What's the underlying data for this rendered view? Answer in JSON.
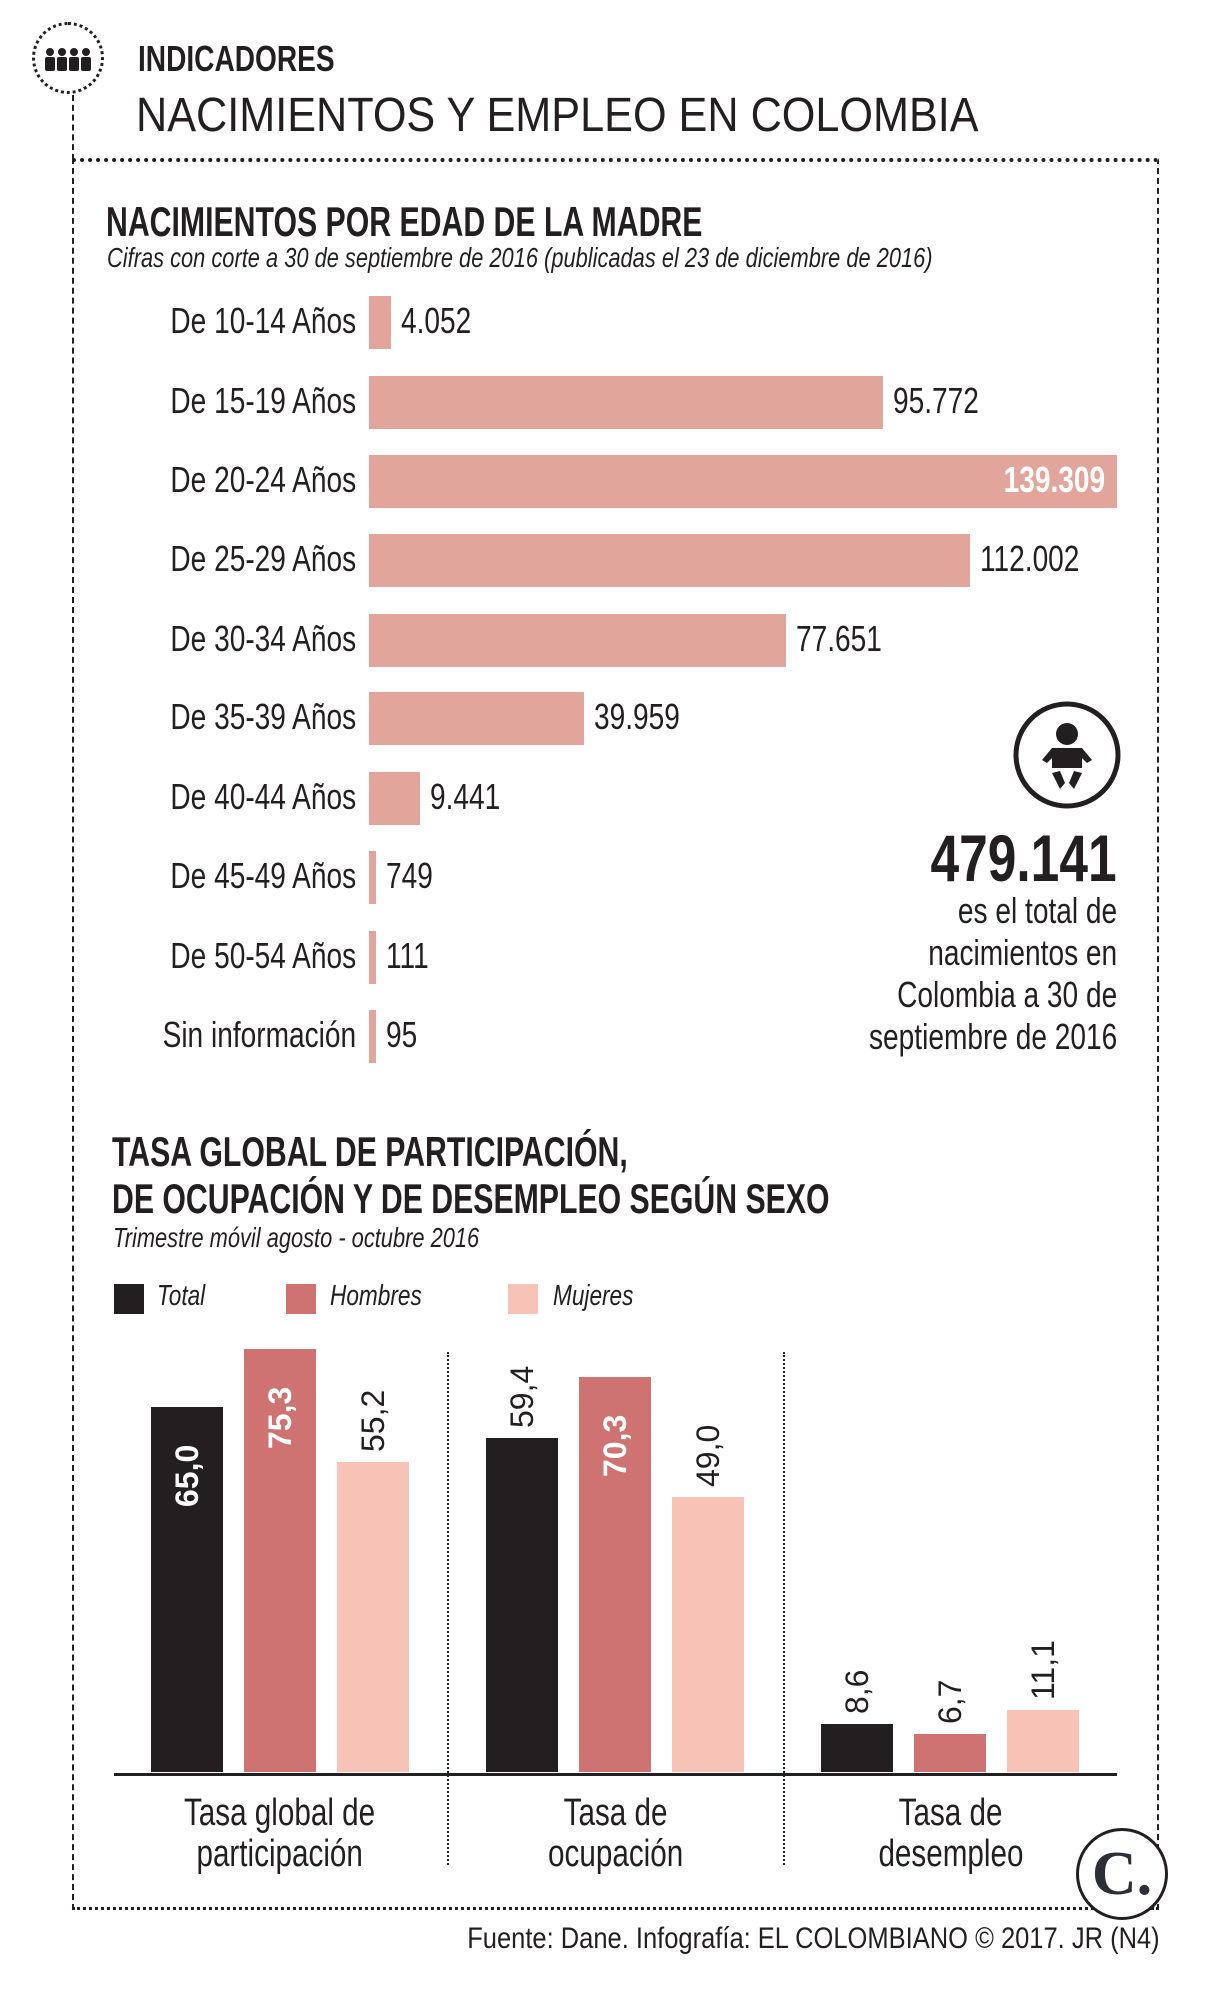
{
  "header": {
    "kicker": "INDICADORES",
    "title": "NACIMIENTOS Y EMPLEO EN COLOMBIA",
    "icon": "people-group-icon"
  },
  "colors": {
    "births_bar": "#e1a59b",
    "total": "#231f20",
    "hombres": "#cf7272",
    "mujeres": "#f8c3b7"
  },
  "chart_data": [
    {
      "type": "bar",
      "orientation": "horizontal",
      "title": "NACIMIENTOS POR EDAD DE LA MADRE",
      "subtitle": "Cifras con corte a 30 de septiembre de 2016 (publicadas el 23 de diciembre de 2016)",
      "categories": [
        "De 10-14 Años",
        "De 15-19 Años",
        "De 20-24 Años",
        "De 25-29 Años",
        "De 30-34 Años",
        "De 35-39 Años",
        "De 40-44 Años",
        "De 45-49 Años",
        "De 50-54 Años",
        "Sin información"
      ],
      "values": [
        4052,
        95772,
        139309,
        112002,
        77651,
        39959,
        9441,
        749,
        111,
        95
      ],
      "value_labels": [
        "4.052",
        "95.772",
        "139.309",
        "112.002",
        "77.651",
        "39.959",
        "9.441",
        "749",
        "111",
        "95"
      ],
      "grid": false,
      "annotation": {
        "icon": "baby-icon",
        "total": "479.141",
        "lines": [
          "es el total de",
          "nacimientos en",
          "Colombia a 30 de",
          "septiembre de 2016"
        ]
      }
    },
    {
      "type": "bar",
      "orientation": "vertical",
      "title_lines": [
        "TASA GLOBAL DE PARTICIPACIÓN,",
        "DE OCUPACIÓN Y DE DESEMPLEO SEGÚN SEXO"
      ],
      "subtitle": "Trimestre móvil agosto - octubre 2016",
      "categories": [
        [
          "Tasa global de",
          "participación"
        ],
        [
          "Tasa de",
          "ocupación"
        ],
        [
          "Tasa de",
          "desempleo"
        ]
      ],
      "series": [
        {
          "name": "Total",
          "values": [
            65.0,
            59.4,
            8.6
          ],
          "labels": [
            "65,0",
            "59,4",
            "8,6"
          ]
        },
        {
          "name": "Hombres",
          "values": [
            75.3,
            70.3,
            6.7
          ],
          "labels": [
            "75,3",
            "70,3",
            "6,7"
          ]
        },
        {
          "name": "Mujeres",
          "values": [
            55.2,
            49.0,
            11.1
          ],
          "labels": [
            "55,2",
            "49,0",
            "11,1"
          ]
        }
      ],
      "legend": "top-left",
      "grid": false
    }
  ],
  "footer": {
    "source": "Fuente: Dane. Infografía: EL COLOMBIANO © 2017. JR (N4)",
    "logo": "C."
  }
}
